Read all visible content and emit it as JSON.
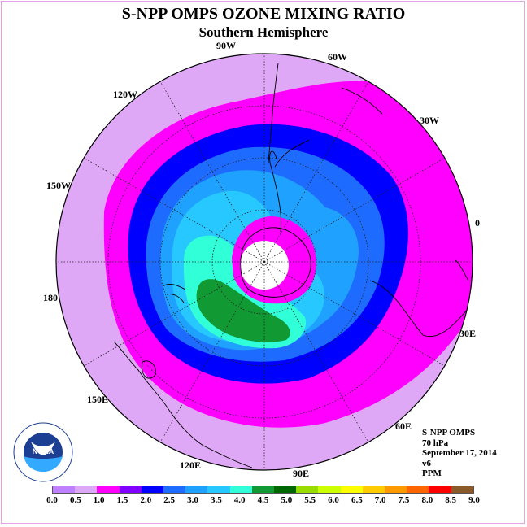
{
  "header": {
    "title": "S-NPP OMPS OZONE MIXING RATIO",
    "subtitle": "Southern Hemisphere"
  },
  "map": {
    "projection": "south-polar-stereographic",
    "longitude_labels": [
      "90W",
      "60W",
      "30W",
      "0",
      "30E",
      "60E",
      "90E",
      "120E",
      "150E",
      "180",
      "150W",
      "120W"
    ],
    "polar_no_data": true,
    "zones_outer_to_inner": [
      {
        "range": "0.5-1.0",
        "color": "#dfa8f7"
      },
      {
        "range": "1.0-1.5",
        "color": "#ff00ff"
      },
      {
        "range": "1.5-2.0",
        "color": "#0000ff"
      },
      {
        "range": "2.0-2.5",
        "color": "#1e6cff"
      },
      {
        "range": "2.5-3.0",
        "color": "#1fa2ff"
      },
      {
        "range": "3.0-3.5",
        "color": "#26c8ff"
      },
      {
        "range": "3.5-4.0",
        "color": "#30ffd8"
      },
      {
        "range": "4.0-4.5",
        "color": "#119933"
      }
    ]
  },
  "info": {
    "instrument": "S-NPP OMPS",
    "level": "70 hPa",
    "date": "September 17, 2014",
    "version": "v6",
    "units": "PPM"
  },
  "logo": {
    "icon": "noaa-logo-icon",
    "text": "NOAA"
  },
  "colorbar": {
    "colors": [
      "#c080ff",
      "#dfa8f7",
      "#ff00ff",
      "#8000ff",
      "#0000ff",
      "#1e6cff",
      "#1fa2ff",
      "#26c8ff",
      "#30ffd8",
      "#119933",
      "#006600",
      "#99dd00",
      "#ccff00",
      "#ffff00",
      "#ffcc00",
      "#ff9900",
      "#ff6600",
      "#ff0000",
      "#8b5a2b"
    ],
    "ticks": [
      "0.0",
      "0.5",
      "1.0",
      "1.5",
      "2.0",
      "2.5",
      "3.0",
      "3.5",
      "4.0",
      "4.5",
      "5.0",
      "5.5",
      "6.0",
      "6.5",
      "7.0",
      "7.5",
      "8.0",
      "8.5",
      "9.0"
    ]
  }
}
